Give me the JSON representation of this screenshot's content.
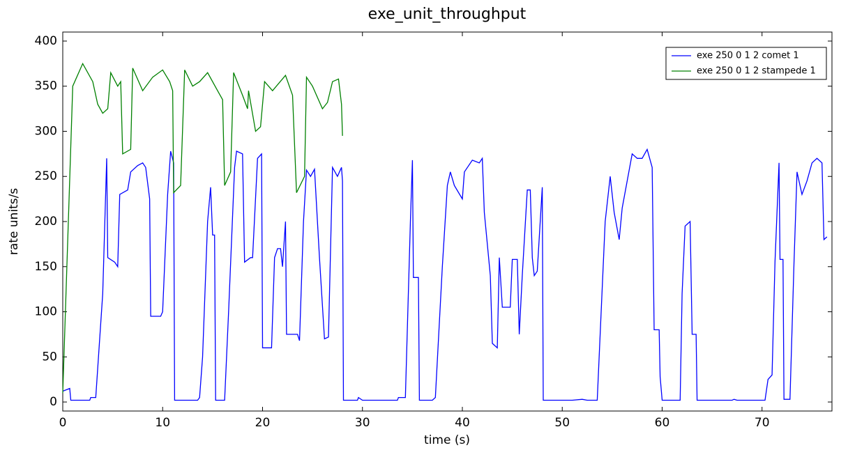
{
  "chart_data": {
    "type": "line",
    "title": "exe_unit_throughput",
    "x_label": "time (s)",
    "y_label": "rate units/s",
    "xlim": [
      0,
      77
    ],
    "ylim": [
      -10,
      410
    ],
    "xticks": [
      0,
      10,
      20,
      30,
      40,
      50,
      60,
      70
    ],
    "yticks": [
      0,
      50,
      100,
      150,
      200,
      250,
      300,
      350,
      400
    ],
    "legend": "upper right",
    "series": [
      {
        "name": "exe 250 0 1 2 comet 1",
        "color": "#0000ff",
        "x": [
          0,
          0.7,
          0.8,
          2.7,
          2.8,
          3.3,
          4,
          4.4,
          4.5,
          5.2,
          5.5,
          5.7,
          6.5,
          6.8,
          7.5,
          8,
          8.3,
          8.7,
          8.8,
          9.8,
          10,
          10.5,
          10.8,
          11.1,
          11.2,
          13.5,
          13.7,
          14,
          14.5,
          14.8,
          15,
          15.2,
          15.3,
          16.2,
          16.6,
          17.2,
          17.4,
          18,
          18.2,
          18.8,
          19,
          19.5,
          19.9,
          20,
          20.9,
          21.2,
          21.5,
          21.8,
          22,
          22.3,
          22.4,
          23.5,
          23.7,
          24.1,
          24.4,
          24.8,
          25.2,
          25.7,
          26.2,
          26.6,
          27,
          27.5,
          27.9,
          28,
          28.1,
          29.5,
          29.6,
          30,
          33.5,
          33.6,
          34.3,
          34.8,
          35,
          35.1,
          35.6,
          35.7,
          37,
          37.3,
          38,
          38.5,
          38.8,
          39.2,
          40,
          40.2,
          41,
          41.7,
          42,
          42.2,
          42.8,
          43,
          43.5,
          43.7,
          44,
          44.8,
          45,
          45.5,
          45.7,
          46,
          46.5,
          46.8,
          47,
          47.2,
          47.5,
          48,
          48.1,
          51,
          52,
          52.5,
          53.5,
          54.3,
          54.8,
          55.2,
          55.7,
          56,
          57,
          57.5,
          58,
          58.5,
          59,
          59.2,
          59.7,
          59.8,
          60,
          61.8,
          62,
          62.3,
          62.8,
          63,
          63.4,
          63.5,
          67,
          67.2,
          67.5,
          70.3,
          70.6,
          71,
          71.3,
          71.7,
          71.8,
          72.1,
          72.2,
          72.8,
          73.2,
          73.5,
          74,
          74.5,
          75,
          75.5,
          76,
          76.2,
          76.5
        ],
        "values": [
          12,
          15,
          2,
          2,
          5,
          5,
          120,
          270,
          160,
          155,
          150,
          230,
          235,
          255,
          262,
          265,
          260,
          225,
          95,
          95,
          100,
          230,
          278,
          265,
          2,
          2,
          5,
          50,
          200,
          238,
          185,
          185,
          2,
          2,
          100,
          260,
          278,
          275,
          155,
          160,
          160,
          270,
          275,
          60,
          60,
          160,
          170,
          170,
          150,
          200,
          75,
          75,
          68,
          200,
          257,
          250,
          258,
          160,
          70,
          72,
          260,
          250,
          260,
          245,
          2,
          2,
          5,
          2,
          2,
          5,
          5,
          200,
          268,
          138,
          138,
          2,
          2,
          5,
          150,
          240,
          255,
          240,
          225,
          255,
          268,
          265,
          270,
          210,
          140,
          65,
          60,
          160,
          105,
          105,
          158,
          158,
          75,
          140,
          235,
          235,
          160,
          140,
          145,
          238,
          2,
          2,
          3,
          2,
          2,
          200,
          250,
          210,
          180,
          215,
          275,
          270,
          270,
          280,
          260,
          80,
          80,
          28,
          2,
          2,
          120,
          195,
          200,
          75,
          75,
          2,
          2,
          3,
          2,
          2,
          25,
          30,
          155,
          265,
          158,
          158,
          3,
          3,
          155,
          255,
          230,
          245,
          265,
          270,
          265,
          180,
          183
        ]
      },
      {
        "name": "exe 250 0 1 2 stampede 1",
        "color": "#008000",
        "x": [
          0,
          1,
          2,
          3,
          3.5,
          4,
          4.5,
          4.8,
          5.5,
          5.8,
          6,
          6.8,
          7,
          8,
          9,
          10,
          10.7,
          11,
          11.1,
          11.8,
          12.2,
          13,
          13.7,
          14.5,
          15.5,
          16,
          16.2,
          16.8,
          17.1,
          18,
          18.5,
          18.6,
          19.3,
          19.8,
          20.2,
          21,
          22.3,
          23,
          23.4,
          24.2,
          24.4,
          25,
          26,
          26.5,
          27,
          27.6,
          27.9,
          28
        ],
        "values": [
          10,
          350,
          375,
          355,
          330,
          320,
          325,
          365,
          350,
          355,
          275,
          280,
          370,
          345,
          360,
          368,
          355,
          345,
          232,
          240,
          368,
          350,
          355,
          365,
          345,
          335,
          240,
          255,
          365,
          340,
          325,
          345,
          300,
          305,
          355,
          345,
          362,
          340,
          232,
          250,
          360,
          350,
          325,
          332,
          355,
          358,
          330,
          295
        ]
      }
    ]
  }
}
